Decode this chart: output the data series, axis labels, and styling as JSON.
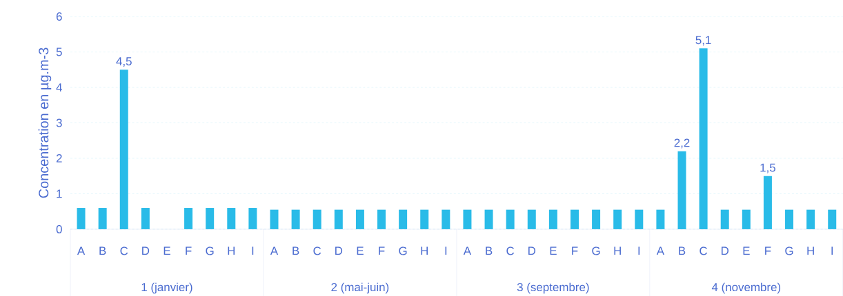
{
  "chart_data": {
    "type": "bar",
    "ylabel": "Concentration en µg.m-3",
    "categories": [
      "A",
      "B",
      "C",
      "D",
      "E",
      "F",
      "G",
      "H",
      "I",
      "A",
      "B",
      "C",
      "D",
      "E",
      "F",
      "G",
      "H",
      "I",
      "A",
      "B",
      "C",
      "D",
      "E",
      "F",
      "G",
      "H",
      "I",
      "A",
      "B",
      "C",
      "D",
      "E",
      "F",
      "G",
      "H",
      "I"
    ],
    "values": [
      0.6,
      0.6,
      4.5,
      0.6,
      null,
      0.6,
      0.6,
      0.6,
      0.6,
      0.55,
      0.55,
      0.55,
      0.55,
      0.55,
      0.55,
      0.55,
      0.55,
      0.55,
      0.55,
      0.55,
      0.55,
      0.55,
      0.55,
      0.55,
      0.55,
      0.55,
      0.55,
      0.55,
      2.2,
      5.1,
      0.55,
      0.55,
      1.5,
      0.55,
      0.55,
      0.55
    ],
    "value_labels": [
      null,
      null,
      "4,5",
      null,
      null,
      null,
      null,
      null,
      null,
      null,
      null,
      null,
      null,
      null,
      null,
      null,
      null,
      null,
      null,
      null,
      null,
      null,
      null,
      null,
      null,
      null,
      null,
      null,
      "2,2",
      "5,1",
      null,
      null,
      "1,5",
      null,
      null,
      null
    ],
    "color": "#29bbe8",
    "annotations": [
      "1 (janvier)",
      "2 (mai-juin)",
      "3 (septembre)",
      "4 (novembre)"
    ],
    "ylim": [
      0,
      6
    ],
    "yticks": [
      0,
      1,
      2,
      3,
      4,
      5,
      6
    ],
    "grid": "y"
  }
}
